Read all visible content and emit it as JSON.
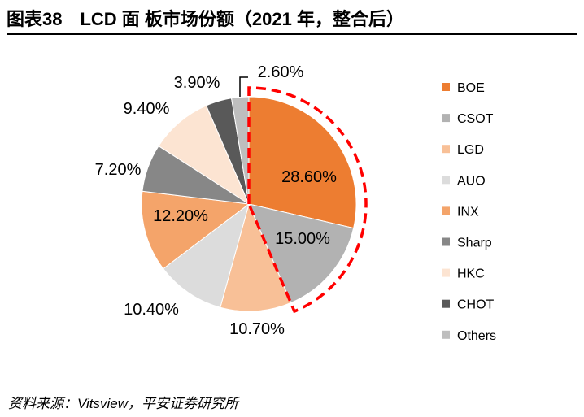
{
  "header": {
    "title": "图表38　LCD 面 板市场份额（2021 年，整合后）"
  },
  "footer": {
    "source": "资料来源：Vitsview，平安证券研究所"
  },
  "chart_data": {
    "type": "pie",
    "title": "图表38　LCD 面 板市场份额（2021 年，整合后）",
    "categories": [
      "BOE",
      "CSOT",
      "LGD",
      "AUO",
      "INX",
      "Sharp",
      "HKC",
      "CHOT",
      "Others"
    ],
    "values": [
      28.6,
      15.0,
      10.7,
      10.4,
      12.2,
      7.2,
      9.4,
      3.9,
      2.6
    ],
    "labels": [
      "28.60%",
      "15.00%",
      "10.70%",
      "10.40%",
      "12.20%",
      "7.20%",
      "9.40%",
      "3.90%",
      "2.60%"
    ],
    "colors": [
      "#ED7D31",
      "#B2B2B2",
      "#F8C097",
      "#DCDCDC",
      "#F4A46A",
      "#878787",
      "#FCE4D2",
      "#595959",
      "#BEBEBE"
    ],
    "legend_position": "right",
    "start_angle": "12 o'clock, clockwise",
    "highlight": {
      "categories": [
        "BOE",
        "CSOT"
      ],
      "style": "red dashed outline",
      "color": "#FF0000"
    }
  }
}
